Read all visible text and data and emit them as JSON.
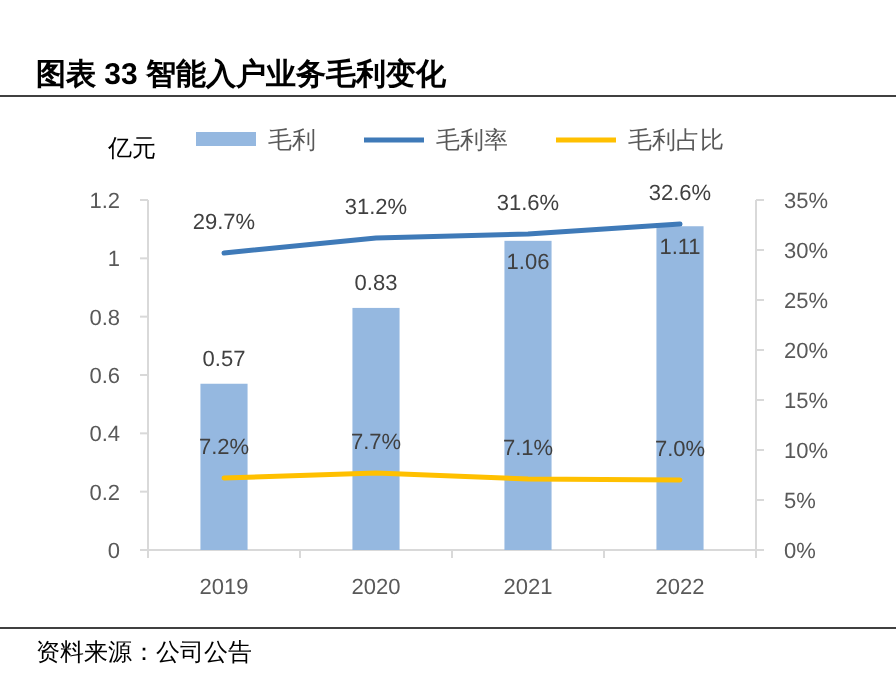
{
  "chart_data": {
    "type": "bar",
    "title": "图表 33 智能入户业务毛利变化",
    "ylabel": "亿元",
    "categories": [
      "2019",
      "2020",
      "2021",
      "2022"
    ],
    "series": [
      {
        "name": "毛利",
        "color": "#95b8e0",
        "values": [
          0.57,
          0.83,
          1.06,
          1.11
        ]
      },
      {
        "name": "毛利率",
        "type": "line",
        "axis": "y2",
        "color": "#3f7ab8",
        "values": [
          29.7,
          31.2,
          31.6,
          32.6
        ],
        "value_labels": [
          "29.7%",
          "31.2%",
          "31.6%",
          "32.6%"
        ]
      },
      {
        "name": "毛利占比",
        "type": "line",
        "axis": "y2",
        "color": "#ffc000",
        "values": [
          7.2,
          7.7,
          7.1,
          7.0
        ],
        "value_labels": [
          "7.2%",
          "7.7%",
          "7.1%",
          "7.0%"
        ]
      }
    ],
    "ylim": [
      0,
      1.2
    ],
    "yticks": [
      0,
      0.2,
      0.4,
      0.6,
      0.8,
      1,
      1.2
    ],
    "y2lim": [
      0,
      35
    ],
    "y2ticks": [
      {
        "value": 0,
        "label": "0%"
      },
      {
        "value": 5,
        "label": "5%"
      },
      {
        "value": 10,
        "label": "10%"
      },
      {
        "value": 15,
        "label": "15%"
      },
      {
        "value": 20,
        "label": "20%"
      },
      {
        "value": 25,
        "label": "25%"
      },
      {
        "value": 30,
        "label": "30%"
      },
      {
        "value": 35,
        "label": "35%"
      }
    ],
    "data_labels": true,
    "legend": "top",
    "grid": false,
    "annotations": [
      "资料来源：公司公告"
    ]
  }
}
